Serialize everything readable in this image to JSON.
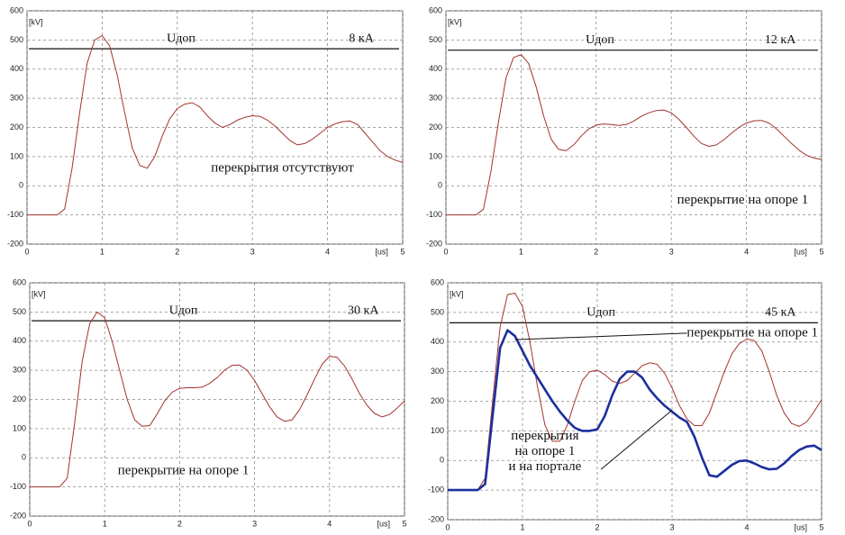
{
  "chart_data": [
    {
      "type": "line",
      "x_label": "[us]",
      "y_label": "[kV]",
      "xlim": [
        0,
        5
      ],
      "xticks": [
        0,
        1,
        2,
        3,
        4,
        5
      ],
      "ylim": [
        -200,
        600
      ],
      "yticks": [
        -200,
        -100,
        0,
        100,
        200,
        300,
        400,
        500,
        600
      ],
      "grid": true,
      "threshold": {
        "label": "Uдоп",
        "value": 470
      },
      "current_label": "8 кА",
      "annotations": [
        [
          "перекрытия отсутствуют"
        ]
      ],
      "x": [
        0,
        0.1,
        0.2,
        0.3,
        0.4,
        0.5,
        0.6,
        0.7,
        0.8,
        0.9,
        1,
        1.1,
        1.2,
        1.3,
        1.4,
        1.5,
        1.6,
        1.7,
        1.8,
        1.9,
        2,
        2.1,
        2.2,
        2.3,
        2.4,
        2.5,
        2.6,
        2.7,
        2.8,
        2.9,
        3,
        3.1,
        3.2,
        3.3,
        3.4,
        3.5,
        3.6,
        3.7,
        3.8,
        3.9,
        4,
        4.1,
        4.2,
        4.3,
        4.4,
        4.5,
        4.6,
        4.7,
        4.8,
        4.9,
        5
      ],
      "series": [
        {
          "color": "#a3322c",
          "width": 1,
          "values": [
            -100,
            -100,
            -100,
            -100,
            -100,
            -80,
            60,
            250,
            420,
            500,
            515,
            480,
            380,
            250,
            130,
            70,
            60,
            100,
            170,
            230,
            265,
            280,
            285,
            270,
            240,
            215,
            200,
            210,
            225,
            235,
            240,
            238,
            225,
            205,
            180,
            155,
            140,
            145,
            160,
            180,
            200,
            212,
            220,
            222,
            210,
            180,
            150,
            120,
            100,
            88,
            80
          ]
        }
      ]
    },
    {
      "type": "line",
      "x_label": "[us]",
      "y_label": "[kV]",
      "xlim": [
        0,
        5
      ],
      "xticks": [
        0,
        1,
        2,
        3,
        4,
        5
      ],
      "ylim": [
        -200,
        600
      ],
      "yticks": [
        -200,
        -100,
        0,
        100,
        200,
        300,
        400,
        500,
        600
      ],
      "grid": true,
      "threshold": {
        "label": "Uдоп",
        "value": 465
      },
      "current_label": "12 кА",
      "annotations": [
        [
          "перекрытие на опоре 1"
        ]
      ],
      "x": [
        0,
        0.1,
        0.2,
        0.3,
        0.4,
        0.5,
        0.6,
        0.7,
        0.8,
        0.9,
        1,
        1.1,
        1.2,
        1.3,
        1.4,
        1.5,
        1.6,
        1.7,
        1.8,
        1.9,
        2,
        2.1,
        2.2,
        2.3,
        2.4,
        2.5,
        2.6,
        2.7,
        2.8,
        2.9,
        3,
        3.1,
        3.2,
        3.3,
        3.4,
        3.5,
        3.6,
        3.7,
        3.8,
        3.9,
        4,
        4.1,
        4.2,
        4.3,
        4.4,
        4.5,
        4.6,
        4.7,
        4.8,
        4.9,
        5
      ],
      "series": [
        {
          "color": "#a3322c",
          "width": 1,
          "values": [
            -100,
            -100,
            -100,
            -100,
            -100,
            -80,
            50,
            220,
            370,
            440,
            450,
            420,
            340,
            240,
            160,
            125,
            120,
            140,
            170,
            195,
            208,
            212,
            210,
            207,
            210,
            222,
            238,
            250,
            258,
            260,
            250,
            228,
            200,
            170,
            145,
            135,
            140,
            158,
            180,
            200,
            215,
            223,
            224,
            215,
            195,
            170,
            145,
            122,
            105,
            95,
            90
          ]
        }
      ]
    },
    {
      "type": "line",
      "x_label": "[us]",
      "y_label": "[kV]",
      "xlim": [
        0,
        5
      ],
      "xticks": [
        0,
        1,
        2,
        3,
        4,
        5
      ],
      "ylim": [
        -200,
        600
      ],
      "yticks": [
        -200,
        -100,
        0,
        100,
        200,
        300,
        400,
        500,
        600
      ],
      "grid": true,
      "threshold": {
        "label": "Uдоп",
        "value": 470
      },
      "current_label": "30 кА",
      "annotations": [
        [
          "перекрытие на опоре 1"
        ]
      ],
      "x": [
        0,
        0.1,
        0.2,
        0.3,
        0.4,
        0.5,
        0.6,
        0.7,
        0.8,
        0.9,
        1,
        1.1,
        1.2,
        1.3,
        1.4,
        1.5,
        1.6,
        1.7,
        1.8,
        1.9,
        2,
        2.1,
        2.2,
        2.3,
        2.4,
        2.5,
        2.6,
        2.7,
        2.8,
        2.9,
        3,
        3.1,
        3.2,
        3.3,
        3.4,
        3.5,
        3.6,
        3.7,
        3.8,
        3.9,
        4,
        4.1,
        4.2,
        4.3,
        4.4,
        4.5,
        4.6,
        4.7,
        4.8,
        4.9,
        5
      ],
      "series": [
        {
          "color": "#a3322c",
          "width": 1,
          "values": [
            -100,
            -100,
            -100,
            -100,
            -100,
            -70,
            120,
            330,
            460,
            500,
            480,
            400,
            300,
            200,
            130,
            108,
            110,
            150,
            195,
            225,
            238,
            240,
            240,
            242,
            255,
            275,
            300,
            317,
            318,
            300,
            265,
            220,
            175,
            140,
            125,
            130,
            165,
            215,
            270,
            320,
            348,
            345,
            315,
            270,
            220,
            180,
            152,
            140,
            148,
            170,
            195
          ]
        }
      ]
    },
    {
      "type": "line",
      "x_label": "[us]",
      "y_label": "[kV]",
      "xlim": [
        0,
        5
      ],
      "xticks": [
        0,
        1,
        2,
        3,
        4,
        5
      ],
      "ylim": [
        -200,
        600
      ],
      "yticks": [
        -200,
        -100,
        0,
        100,
        200,
        300,
        400,
        500,
        600
      ],
      "grid": true,
      "threshold": {
        "label": "Uдоп",
        "value": 465
      },
      "current_label": "45 кА",
      "annotations": [
        [
          "перекрытие на опоре 1"
        ],
        [
          "перекрытия",
          "на опоре 1",
          "и на портале"
        ]
      ],
      "x": [
        0,
        0.1,
        0.2,
        0.3,
        0.4,
        0.5,
        0.6,
        0.7,
        0.8,
        0.9,
        1,
        1.1,
        1.2,
        1.3,
        1.4,
        1.5,
        1.6,
        1.7,
        1.8,
        1.9,
        2,
        2.1,
        2.2,
        2.3,
        2.4,
        2.5,
        2.6,
        2.7,
        2.8,
        2.9,
        3,
        3.1,
        3.2,
        3.3,
        3.4,
        3.5,
        3.6,
        3.7,
        3.8,
        3.9,
        4,
        4.1,
        4.2,
        4.3,
        4.4,
        4.5,
        4.6,
        4.7,
        4.8,
        4.9,
        5
      ],
      "series": [
        {
          "color": "#a3322c",
          "width": 1,
          "values": [
            -100,
            -100,
            -100,
            -100,
            -100,
            -60,
            200,
            450,
            560,
            565,
            520,
            400,
            250,
            120,
            65,
            65,
            120,
            200,
            270,
            300,
            305,
            290,
            268,
            260,
            270,
            295,
            320,
            330,
            325,
            295,
            245,
            185,
            140,
            118,
            118,
            160,
            230,
            300,
            360,
            395,
            410,
            405,
            370,
            300,
            220,
            160,
            125,
            115,
            130,
            165,
            205
          ]
        },
        {
          "color": "#1c2f9e",
          "width": 2.6,
          "values": [
            -100,
            -100,
            -100,
            -100,
            -100,
            -80,
            150,
            380,
            440,
            420,
            370,
            320,
            280,
            240,
            200,
            165,
            135,
            110,
            100,
            100,
            105,
            150,
            220,
            275,
            300,
            300,
            280,
            240,
            210,
            185,
            165,
            145,
            130,
            80,
            10,
            -50,
            -55,
            -35,
            -15,
            -2,
            0,
            -10,
            -22,
            -30,
            -28,
            -10,
            15,
            35,
            47,
            50,
            35
          ]
        }
      ]
    }
  ]
}
